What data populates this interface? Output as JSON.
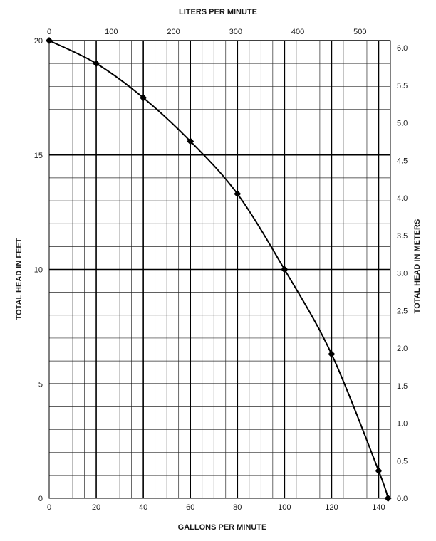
{
  "chart_data": {
    "type": "line",
    "title": "",
    "xlabel": "GALLONS PER MINUTE",
    "ylabel": "TOTAL HEAD IN FEET",
    "x2label": "LITERS PER MINUTE",
    "y2label": "TOTAL HEAD IN METERS",
    "xlim": [
      0,
      145
    ],
    "ylim": [
      0,
      20
    ],
    "x2lim": [
      0,
      548.9
    ],
    "y2lim": [
      0,
      6.096
    ],
    "x_ticks": [
      0,
      20,
      40,
      60,
      80,
      100,
      120,
      140
    ],
    "x_tick_labels": [
      "0",
      "20",
      "40",
      "60",
      "80",
      "100",
      "120",
      "140"
    ],
    "y_ticks": [
      0,
      5,
      10,
      15,
      20
    ],
    "y_tick_labels": [
      "0",
      "5",
      "10",
      "15",
      "20"
    ],
    "x2_ticks": [
      0,
      100,
      200,
      300,
      400,
      500
    ],
    "x2_tick_labels": [
      "0",
      "100",
      "200",
      "300",
      "400",
      "500"
    ],
    "y2_ticks": [
      0,
      0.5,
      1.0,
      1.5,
      2.0,
      2.5,
      3.0,
      3.5,
      4.0,
      4.5,
      5.0,
      5.5,
      6.0
    ],
    "y2_tick_labels": [
      "0.0",
      "0.5",
      "1.0",
      "1.5",
      "2.0",
      "2.5",
      "3.0",
      "3.5",
      "4.0",
      "4.5",
      "5.0",
      "5.5",
      "6.0"
    ],
    "grid": true,
    "legend": "none",
    "series": [
      {
        "x": [
          0,
          20,
          40,
          60,
          80,
          100,
          120,
          140,
          144
        ],
        "y": [
          20,
          19,
          17.5,
          15.6,
          13.3,
          10,
          6.3,
          1.2,
          0
        ],
        "color": "#000000",
        "marker": "diamond"
      }
    ]
  }
}
